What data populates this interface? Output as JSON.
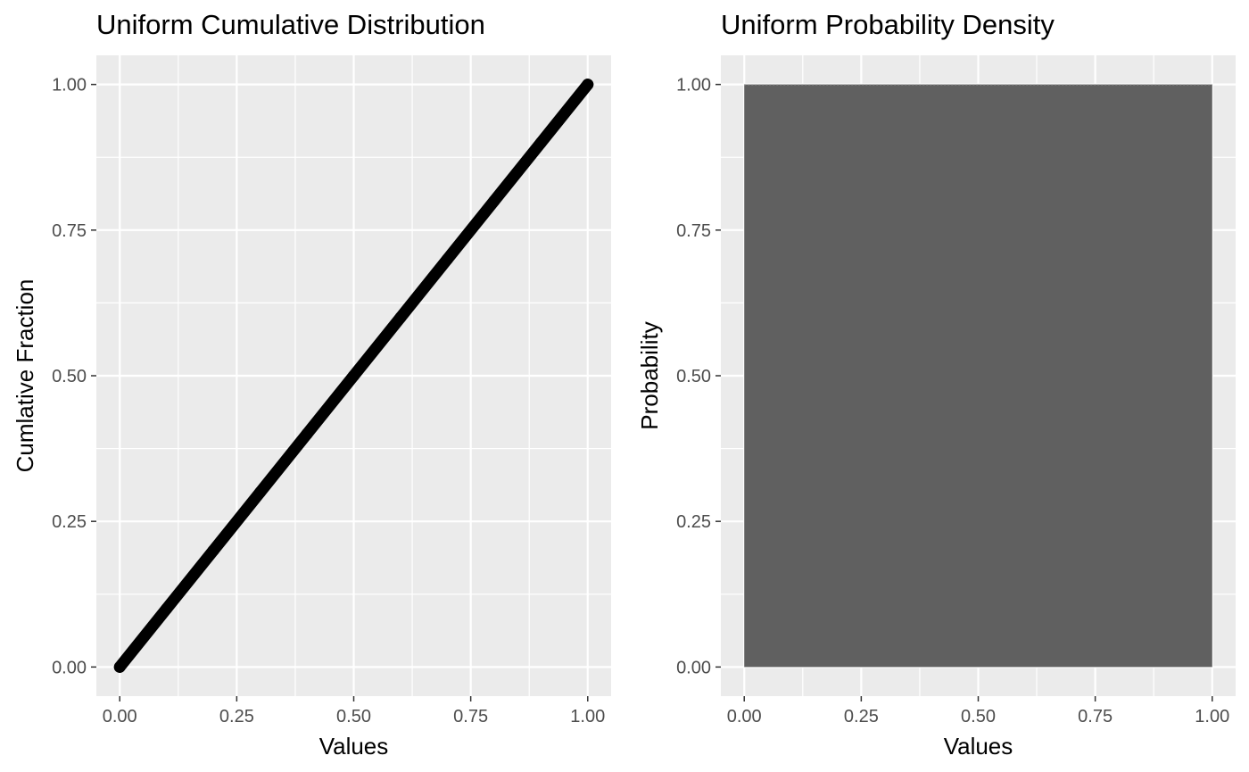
{
  "chart_data": [
    {
      "type": "scatter",
      "title": "Uniform Cumulative Distribution",
      "xlabel": "Values",
      "ylabel": "Cumlative Fraction",
      "xlim": [
        -0.05,
        1.05
      ],
      "ylim": [
        -0.05,
        1.05
      ],
      "xticks": [
        "0.00",
        "0.25",
        "0.50",
        "0.75",
        "1.00"
      ],
      "yticks": [
        "0.00",
        "0.25",
        "0.50",
        "0.75",
        "1.00"
      ],
      "grid": true,
      "series": [
        {
          "points_description": "dense points along y = x",
          "x": [
            0,
            0.1,
            0.2,
            0.3,
            0.4,
            0.5,
            0.6,
            0.7,
            0.8,
            0.9,
            1.0
          ],
          "y": [
            0,
            0.1,
            0.2,
            0.3,
            0.4,
            0.5,
            0.6,
            0.7,
            0.8,
            0.9,
            1.0
          ],
          "color": "#000000"
        }
      ]
    },
    {
      "type": "area",
      "title": "Uniform Probability Density",
      "xlabel": "Values",
      "ylabel": "Probability",
      "xlim": [
        -0.05,
        1.05
      ],
      "ylim": [
        -0.05,
        1.05
      ],
      "xticks": [
        "0.00",
        "0.25",
        "0.50",
        "0.75",
        "1.00"
      ],
      "yticks": [
        "0.00",
        "0.25",
        "0.50",
        "0.75",
        "1.00"
      ],
      "grid": true,
      "series": [
        {
          "x": [
            0,
            1
          ],
          "y": [
            1,
            1
          ],
          "color": "#595959"
        }
      ]
    }
  ]
}
